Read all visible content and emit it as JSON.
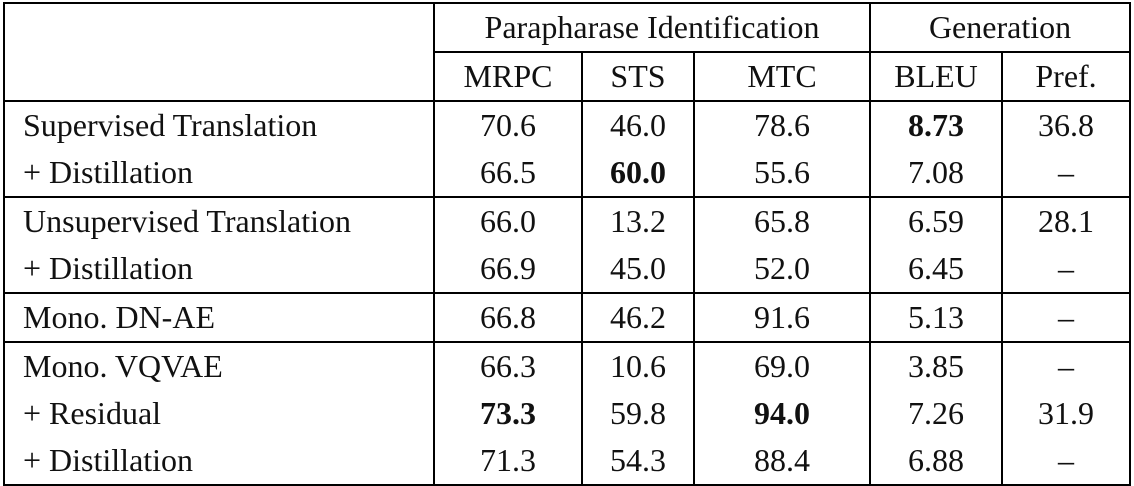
{
  "table": {
    "group_headers": [
      "Parapharase Identification",
      "Generation"
    ],
    "column_headers": [
      "MRPC",
      "STS",
      "MTC",
      "BLEU",
      "Pref."
    ],
    "rows": [
      {
        "label": "Supervised Translation",
        "values": [
          "70.6",
          "46.0",
          "78.6",
          "8.73",
          "36.8"
        ],
        "bold": [
          false,
          false,
          false,
          true,
          false
        ]
      },
      {
        "label": "+ Distillation",
        "values": [
          "66.5",
          "60.0",
          "55.6",
          "7.08",
          "–"
        ],
        "bold": [
          false,
          true,
          false,
          false,
          false
        ]
      },
      {
        "label": "Unsupervised Translation",
        "values": [
          "66.0",
          "13.2",
          "65.8",
          "6.59",
          "28.1"
        ],
        "bold": [
          false,
          false,
          false,
          false,
          false
        ]
      },
      {
        "label": "+ Distillation",
        "values": [
          "66.9",
          "45.0",
          "52.0",
          "6.45",
          "–"
        ],
        "bold": [
          false,
          false,
          false,
          false,
          false
        ]
      },
      {
        "label": "Mono. DN-AE",
        "values": [
          "66.8",
          "46.2",
          "91.6",
          "5.13",
          "–"
        ],
        "bold": [
          false,
          false,
          false,
          false,
          false
        ]
      },
      {
        "label": "Mono. VQVAE",
        "values": [
          "66.3",
          "10.6",
          "69.0",
          "3.85",
          "–"
        ],
        "bold": [
          false,
          false,
          false,
          false,
          false
        ]
      },
      {
        "label": "+ Residual",
        "values": [
          "73.3",
          "59.8",
          "94.0",
          "7.26",
          "31.9"
        ],
        "bold": [
          true,
          false,
          true,
          false,
          false
        ]
      },
      {
        "label": "+ Distillation",
        "values": [
          "71.3",
          "54.3",
          "88.4",
          "6.88",
          "–"
        ],
        "bold": [
          false,
          false,
          false,
          false,
          false
        ]
      }
    ]
  }
}
